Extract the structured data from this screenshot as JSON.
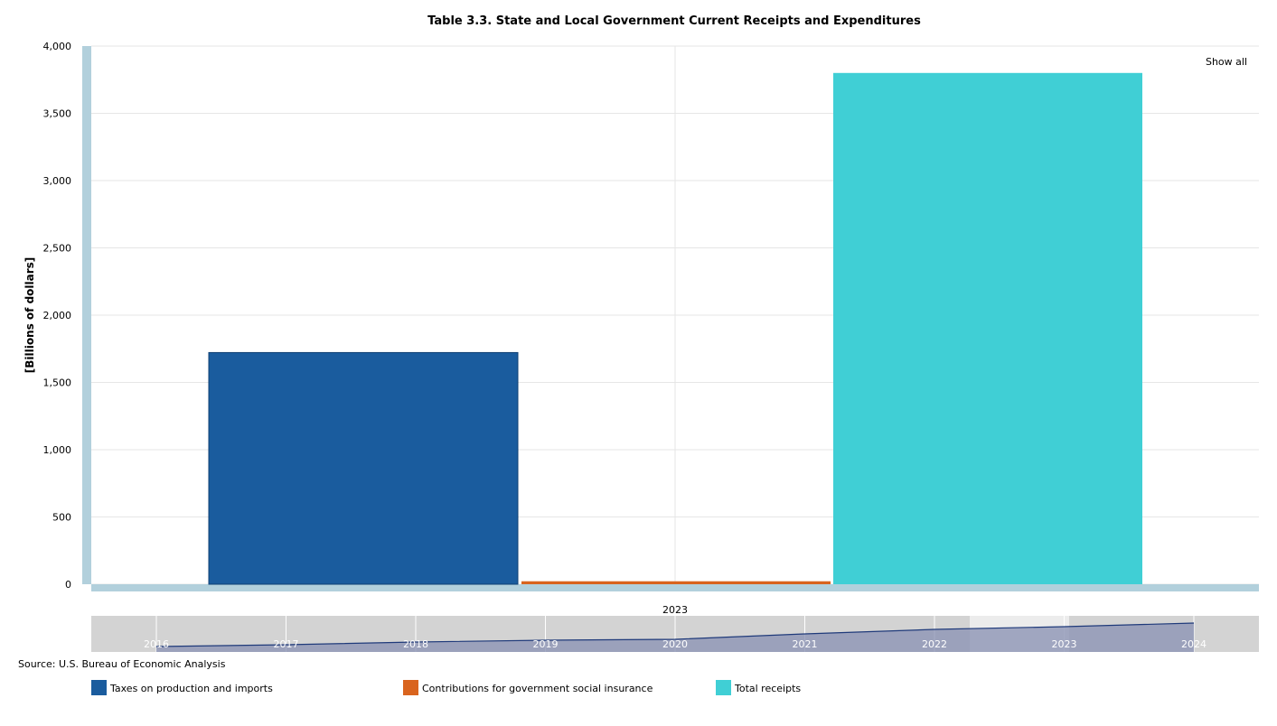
{
  "chart_data": {
    "type": "bar",
    "title": "Table 3.3. State and Local Government Current Receipts and Expenditures",
    "ylabel": "[Billions of dollars]",
    "xlabel": "",
    "categories": [
      "2023"
    ],
    "ylim": [
      0,
      4000
    ],
    "y_ticks": [
      "0",
      "500",
      "1,000",
      "1,500",
      "2,000",
      "2,500",
      "3,000",
      "3,500",
      "4,000"
    ],
    "grid": true,
    "legend_position": "bottom",
    "series": [
      {
        "name": "Taxes on production and imports",
        "values": [
          1722
        ],
        "color": "#1a5c9e"
      },
      {
        "name": "Contributions for government social insurance",
        "values": [
          22
        ],
        "color": "#d9641e"
      },
      {
        "name": "Total receipts",
        "values": [
          3800
        ],
        "color": "#40cfd5"
      }
    ],
    "navigator": {
      "years": [
        "2016",
        "2017",
        "2018",
        "2019",
        "2020",
        "2021",
        "2022",
        "2023",
        "2024"
      ],
      "selected": "2023"
    }
  },
  "controls": {
    "show_all_label": "Show all"
  },
  "source": "Source: U.S. Bureau of Economic Analysis"
}
